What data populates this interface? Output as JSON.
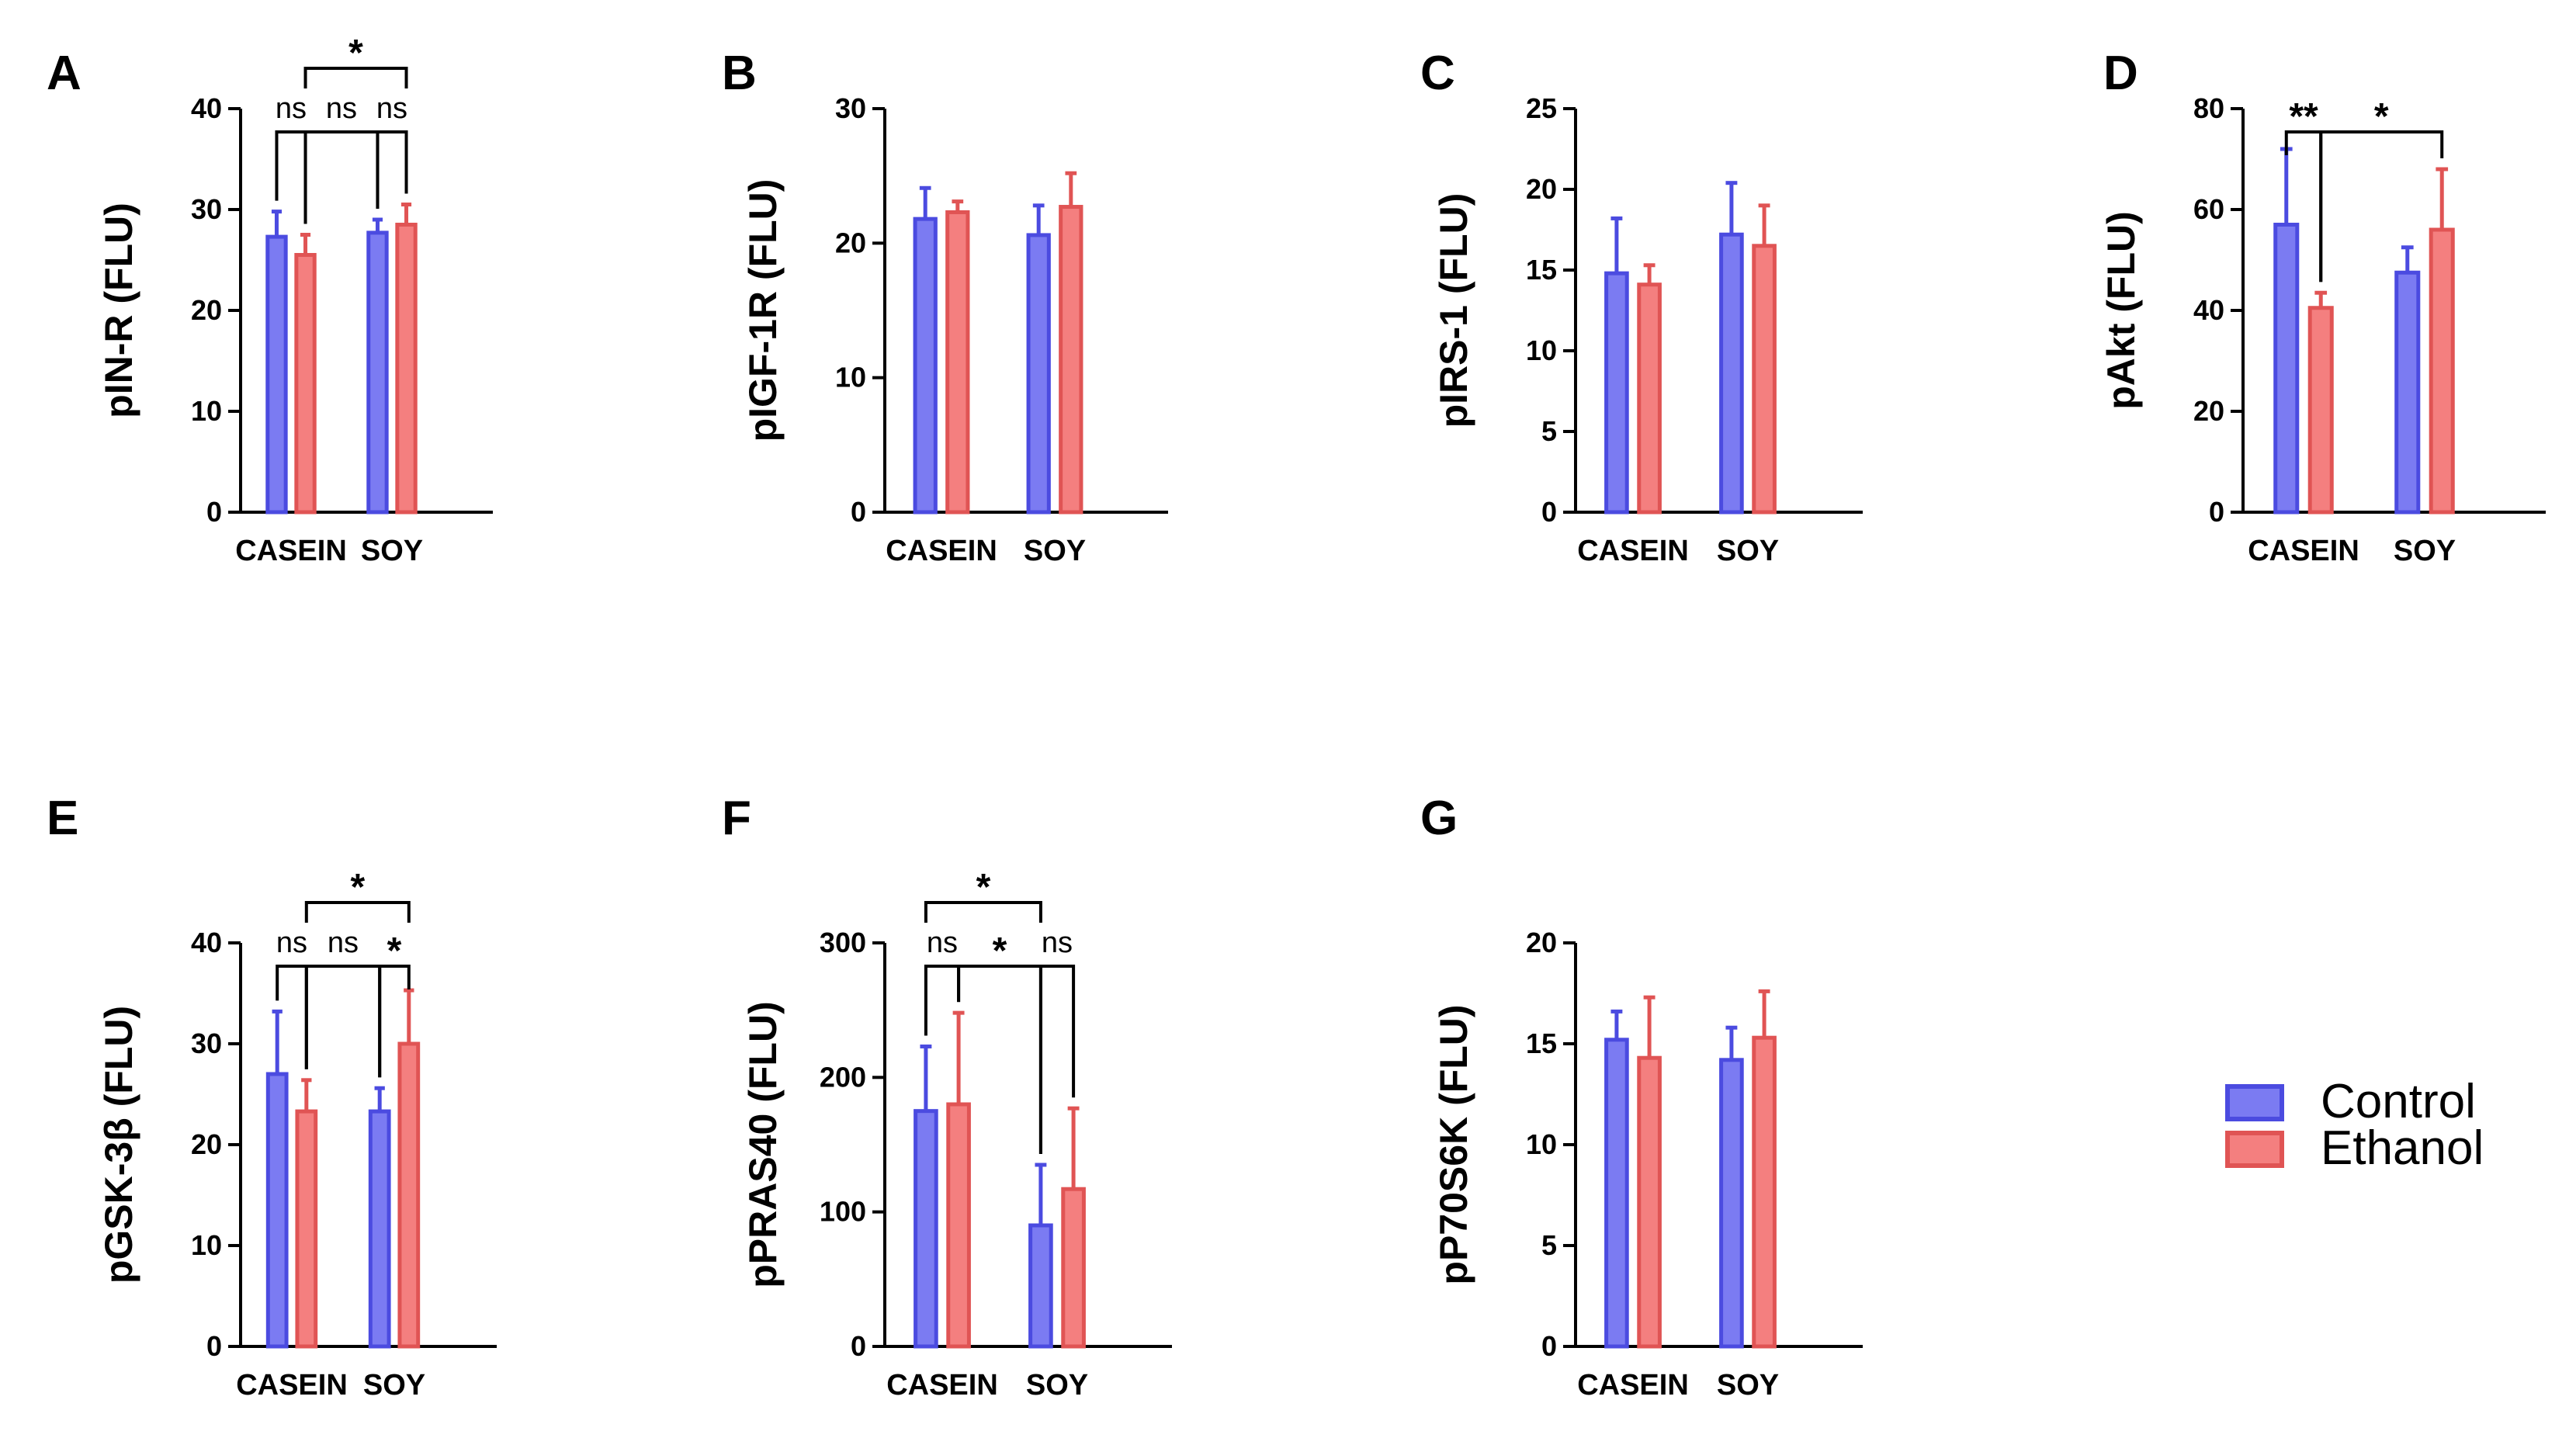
{
  "colors": {
    "control_fill": "#7b7bf2",
    "control_stroke": "#4b4be0",
    "ethanol_fill": "#f47f7f",
    "ethanol_stroke": "#e05454"
  },
  "legend": {
    "items": [
      {
        "name": "Control"
      },
      {
        "name": "Ethanol"
      }
    ]
  },
  "chart_data": [
    {
      "panel": "A",
      "type": "bar",
      "ylabel": "pIN-R (FLU)",
      "categories": [
        "CASEIN",
        "SOY"
      ],
      "ylim": [
        0,
        40
      ],
      "yticks": [
        "0",
        "10",
        "20",
        "30",
        "40"
      ],
      "series": [
        {
          "name": "Control",
          "values": [
            27.3,
            27.7
          ],
          "errors": [
            2.5,
            1.3
          ]
        },
        {
          "name": "Ethanol",
          "values": [
            25.5,
            28.5
          ],
          "errors": [
            2.0,
            2.0
          ]
        }
      ],
      "annotations": [
        {
          "label": "ns",
          "from": [
            0,
            0
          ],
          "to": [
            0,
            1
          ],
          "level": 0
        },
        {
          "label": "ns",
          "from": [
            0,
            1
          ],
          "to": [
            1,
            0
          ],
          "level": 0
        },
        {
          "label": "ns",
          "from": [
            1,
            0
          ],
          "to": [
            1,
            1
          ],
          "level": 0
        },
        {
          "label": "*",
          "from": [
            0,
            1
          ],
          "to": [
            1,
            1
          ],
          "level": 1
        }
      ]
    },
    {
      "panel": "B",
      "type": "bar",
      "ylabel": "pIGF-1R (FLU)",
      "categories": [
        "CASEIN",
        "SOY"
      ],
      "ylim": [
        0,
        30
      ],
      "yticks": [
        "0",
        "10",
        "20",
        "30"
      ],
      "series": [
        {
          "name": "Control",
          "values": [
            21.8,
            20.6
          ],
          "errors": [
            2.3,
            2.2
          ]
        },
        {
          "name": "Ethanol",
          "values": [
            22.3,
            22.7
          ],
          "errors": [
            0.8,
            2.5
          ]
        }
      ],
      "annotations": []
    },
    {
      "panel": "C",
      "type": "bar",
      "ylabel": "pIRS-1 (FLU)",
      "categories": [
        "CASEIN",
        "SOY"
      ],
      "ylim": [
        0,
        25
      ],
      "yticks": [
        "0",
        "5",
        "10",
        "15",
        "20",
        "25"
      ],
      "series": [
        {
          "name": "Control",
          "values": [
            14.8,
            17.2
          ],
          "errors": [
            3.4,
            3.2
          ]
        },
        {
          "name": "Ethanol",
          "values": [
            14.1,
            16.5
          ],
          "errors": [
            1.2,
            2.5
          ]
        }
      ],
      "annotations": []
    },
    {
      "panel": "D",
      "type": "bar",
      "ylabel": "pAkt (FLU)",
      "categories": [
        "CASEIN",
        "SOY"
      ],
      "ylim": [
        0,
        80
      ],
      "yticks": [
        "0",
        "20",
        "40",
        "60",
        "80"
      ],
      "series": [
        {
          "name": "Control",
          "values": [
            57,
            47.5
          ],
          "errors": [
            15,
            5
          ]
        },
        {
          "name": "Ethanol",
          "values": [
            40.5,
            56
          ],
          "errors": [
            3,
            12
          ]
        }
      ],
      "annotations": [
        {
          "label": "**",
          "from": [
            0,
            0
          ],
          "to": [
            0,
            1
          ],
          "level": 0
        },
        {
          "label": "*",
          "from": [
            0,
            1
          ],
          "to": [
            1,
            1
          ],
          "level": 0
        }
      ]
    },
    {
      "panel": "E",
      "type": "bar",
      "ylabel": "pGSK-3β (FLU)",
      "categories": [
        "CASEIN",
        "SOY"
      ],
      "ylim": [
        0,
        40
      ],
      "yticks": [
        "0",
        "10",
        "20",
        "30",
        "40"
      ],
      "series": [
        {
          "name": "Control",
          "values": [
            27,
            23.3
          ],
          "errors": [
            6.2,
            2.3
          ]
        },
        {
          "name": "Ethanol",
          "values": [
            23.3,
            30
          ],
          "errors": [
            3.1,
            5.3
          ]
        }
      ],
      "annotations": [
        {
          "label": "ns",
          "from": [
            0,
            0
          ],
          "to": [
            0,
            1
          ],
          "level": 0
        },
        {
          "label": "ns",
          "from": [
            0,
            1
          ],
          "to": [
            1,
            0
          ],
          "level": 0
        },
        {
          "label": "*",
          "from": [
            1,
            0
          ],
          "to": [
            1,
            1
          ],
          "level": 0
        },
        {
          "label": "*",
          "from": [
            0,
            1
          ],
          "to": [
            1,
            1
          ],
          "level": 1
        }
      ]
    },
    {
      "panel": "F",
      "type": "bar",
      "ylabel": "pPRAS40 (FLU)",
      "categories": [
        "CASEIN",
        "SOY"
      ],
      "ylim": [
        0,
        300
      ],
      "yticks": [
        "0",
        "100",
        "200",
        "300"
      ],
      "series": [
        {
          "name": "Control",
          "values": [
            175,
            90
          ],
          "errors": [
            48,
            45
          ]
        },
        {
          "name": "Ethanol",
          "values": [
            180,
            117
          ],
          "errors": [
            68,
            60
          ]
        }
      ],
      "annotations": [
        {
          "label": "ns",
          "from": [
            0,
            0
          ],
          "to": [
            0,
            1
          ],
          "level": 0
        },
        {
          "label": "*",
          "from": [
            0,
            1
          ],
          "to": [
            1,
            0
          ],
          "level": 0
        },
        {
          "label": "ns",
          "from": [
            1,
            0
          ],
          "to": [
            1,
            1
          ],
          "level": 0
        },
        {
          "label": "*",
          "from": [
            0,
            0
          ],
          "to": [
            1,
            0
          ],
          "level": 1
        }
      ]
    },
    {
      "panel": "G",
      "type": "bar",
      "ylabel": "pP70S6K (FLU)",
      "categories": [
        "CASEIN",
        "SOY"
      ],
      "ylim": [
        0,
        20
      ],
      "yticks": [
        "0",
        "5",
        "10",
        "15",
        "20"
      ],
      "series": [
        {
          "name": "Control",
          "values": [
            15.2,
            14.2
          ],
          "errors": [
            1.4,
            1.6
          ]
        },
        {
          "name": "Ethanol",
          "values": [
            14.3,
            15.3
          ],
          "errors": [
            3.0,
            2.3
          ]
        }
      ],
      "annotations": []
    }
  ]
}
